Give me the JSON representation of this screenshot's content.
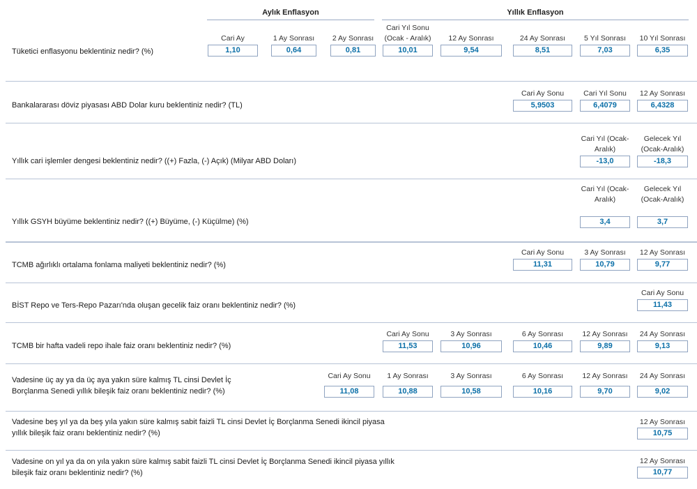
{
  "header": {
    "monthly_title": "Aylık Enflasyon",
    "annual_title": "Yıllık Enflasyon"
  },
  "sections": [
    {
      "question": "Tüketici enflasyonu beklentiniz nedir? (%)",
      "columns": [
        {
          "label": "Cari Ay",
          "value": "1,10"
        },
        {
          "label": "1 Ay Sonrası",
          "value": "0,64"
        },
        {
          "label": "2 Ay Sonrası",
          "value": "0,81"
        },
        {
          "label": "Cari Yıl Sonu (Ocak - Aralık)",
          "value": "10,01"
        },
        {
          "label": "12 Ay Sonrası",
          "value": "9,54"
        },
        {
          "label": "24 Ay Sonrası",
          "value": "8,51"
        },
        {
          "label": "5 Yıl Sonrası",
          "value": "7,03"
        },
        {
          "label": "10 Yıl Sonrası",
          "value": "6,35"
        }
      ]
    },
    {
      "question": "Bankalararası döviz piyasası ABD Dolar kuru beklentiniz nedir?  (TL)",
      "columns": [
        {
          "label": "Cari Ay Sonu",
          "value": "5,9503"
        },
        {
          "label": "Cari Yıl Sonu",
          "value": "6,4079"
        },
        {
          "label": "12 Ay Sonrası",
          "value": "6,4328"
        }
      ]
    },
    {
      "question": "Yıllık cari işlemler dengesi beklentiniz nedir?  ((+) Fazla, (-) Açık)    (Milyar ABD Doları)",
      "columns": [
        {
          "label": "Cari Yıl (Ocak-Aralık)",
          "value": "-13,0"
        },
        {
          "label": "Gelecek Yıl (Ocak-Aralık)",
          "value": "-18,3"
        }
      ]
    },
    {
      "question": "Yıllık GSYH büyüme beklentiniz nedir?     ((+) Büyüme, (-) Küçülme)  (%)",
      "columns": [
        {
          "label": "Cari Yıl (Ocak-Aralık)",
          "value": "3,4"
        },
        {
          "label": "Gelecek Yıl (Ocak-Aralık)",
          "value": "3,7"
        }
      ]
    },
    {
      "question": "TCMB ağırlıklı ortalama fonlama maliyeti beklentiniz nedir? (%)",
      "columns": [
        {
          "label": "Cari Ay Sonu",
          "value": "11,31"
        },
        {
          "label": "3 Ay Sonrası",
          "value": "10,79"
        },
        {
          "label": "12 Ay Sonrası",
          "value": "9,77"
        }
      ]
    },
    {
      "question": "BİST Repo ve Ters-Repo Pazarı'nda oluşan gecelik faiz oranı beklentiniz nedir? (%)",
      "columns": [
        {
          "label": "Cari Ay Sonu",
          "value": "11,43"
        }
      ]
    },
    {
      "question": "TCMB bir hafta vadeli repo ihale faiz oranı beklentiniz nedir? (%)",
      "columns": [
        {
          "label": "Cari Ay Sonu",
          "value": "11,53"
        },
        {
          "label": "3 Ay Sonrası",
          "value": "10,96"
        },
        {
          "label": "6 Ay Sonrası",
          "value": "10,46"
        },
        {
          "label": "12 Ay Sonrası",
          "value": "9,89"
        },
        {
          "label": "24 Ay Sonrası",
          "value": "9,13"
        }
      ]
    },
    {
      "question_lines": [
        "Vadesine üç ay ya da üç aya yakın süre kalmış TL cinsi Devlet İç",
        "Borçlanma Senedi yıllık bileşik faiz oranı beklentiniz nedir? (%)"
      ],
      "columns": [
        {
          "label": "Cari Ay Sonu",
          "value": "11,08"
        },
        {
          "label": "1 Ay Sonrası",
          "value": "10,88"
        },
        {
          "label": "3 Ay Sonrası",
          "value": "10,58"
        },
        {
          "label": "6 Ay Sonrası",
          "value": "10,16"
        },
        {
          "label": "12 Ay Sonrası",
          "value": "9,70"
        },
        {
          "label": "24 Ay Sonrası",
          "value": "9,02"
        }
      ]
    },
    {
      "question_lines": [
        "Vadesine beş yıl ya da beş yıla yakın süre kalmış sabit faizli TL cinsi Devlet İç Borçlanma Senedi ikincil piyasa",
        "yıllık bileşik faiz oranı beklentiniz nedir? (%)"
      ],
      "columns": [
        {
          "label": "12 Ay Sonrası",
          "value": "10,75"
        }
      ]
    },
    {
      "question_lines": [
        "Vadesine on yıl ya da on yıla yakın süre kalmış sabit faizli TL cinsi Devlet İç Borçlanma Senedi ikincil piyasa yıllık",
        "bileşik faiz oranı beklentiniz nedir? (%)"
      ],
      "columns": [
        {
          "label": "12 Ay Sonrası",
          "value": "10,77"
        }
      ]
    }
  ]
}
